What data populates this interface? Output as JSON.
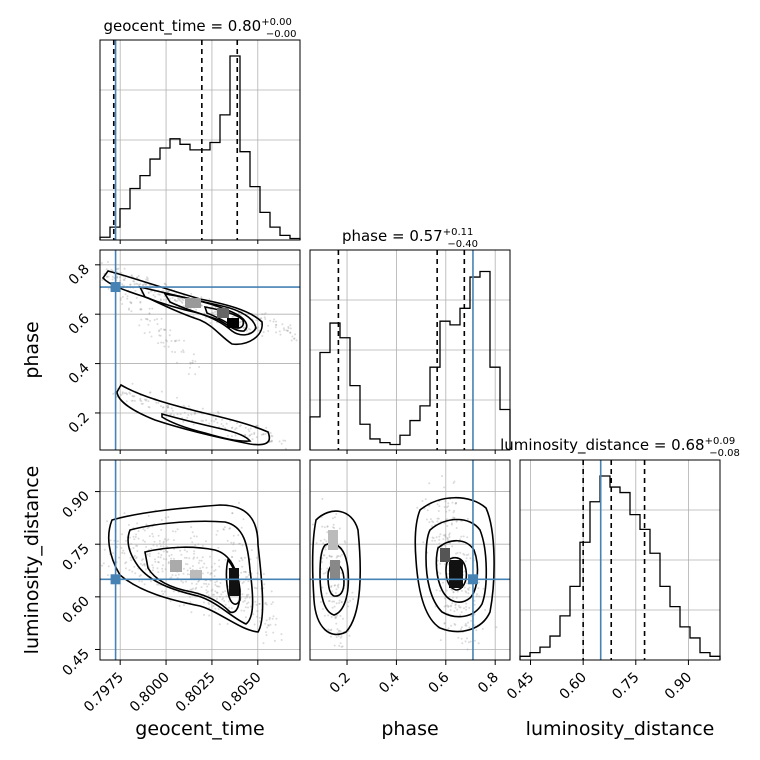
{
  "chart_data": {
    "type": "corner",
    "parameters": [
      "geocent_time",
      "phase",
      "luminosity_distance"
    ],
    "titles": [
      {
        "name": "geocent_time",
        "median": "0.80",
        "plus": "+0.00",
        "minus": "−0.00"
      },
      {
        "name": "phase",
        "median": "0.57",
        "plus": "+0.11",
        "minus": "−0.40"
      },
      {
        "name": "luminosity_distance",
        "median": "0.68",
        "plus": "+0.09",
        "minus": "−0.08"
      }
    ],
    "ranges": {
      "geocent_time": [
        0.7964,
        0.8073
      ],
      "phase": [
        0.05,
        0.86
      ],
      "luminosity_distance": [
        0.42,
        0.99
      ]
    },
    "ticks": {
      "geocent_time": {
        "values": [
          0.7975,
          0.8,
          0.8025,
          0.805
        ],
        "labels": [
          "0.7975",
          "0.8000",
          "0.8025",
          "0.8050"
        ]
      },
      "phase": {
        "values": [
          0.2,
          0.4,
          0.6,
          0.8
        ],
        "labels": [
          "0.2",
          "0.4",
          "0.6",
          "0.8"
        ]
      },
      "luminosity_distance": {
        "values": [
          0.45,
          0.6,
          0.75,
          0.9
        ],
        "labels": [
          "0.45",
          "0.60",
          "0.75",
          "0.90"
        ]
      }
    },
    "truths": {
      "geocent_time": 0.79725,
      "phase": 0.71,
      "luminosity_distance": 0.65
    },
    "quantiles": {
      "geocent_time": [
        0.79715,
        0.80195,
        0.80388
      ],
      "phase": [
        0.165,
        0.565,
        0.675
      ],
      "luminosity_distance": [
        0.6,
        0.68,
        0.775
      ]
    },
    "histograms": {
      "geocent_time": [
        0.015,
        0.07,
        0.17,
        0.28,
        0.35,
        0.44,
        0.5,
        0.55,
        0.52,
        0.49,
        0.49,
        0.53,
        0.68,
        1.0,
        0.48,
        0.29,
        0.15,
        0.07,
        0.025,
        0.008
      ],
      "phase": [
        0.18,
        0.53,
        0.69,
        0.61,
        0.35,
        0.14,
        0.06,
        0.04,
        0.03,
        0.08,
        0.16,
        0.24,
        0.45,
        0.7,
        0.68,
        0.77,
        0.94,
        0.97,
        0.45,
        0.22
      ],
      "luminosity_distance": [
        0.02,
        0.04,
        0.07,
        0.13,
        0.24,
        0.4,
        0.64,
        0.86,
        1.0,
        0.94,
        0.91,
        0.79,
        0.71,
        0.58,
        0.4,
        0.29,
        0.18,
        0.12,
        0.04,
        0.02
      ]
    }
  }
}
